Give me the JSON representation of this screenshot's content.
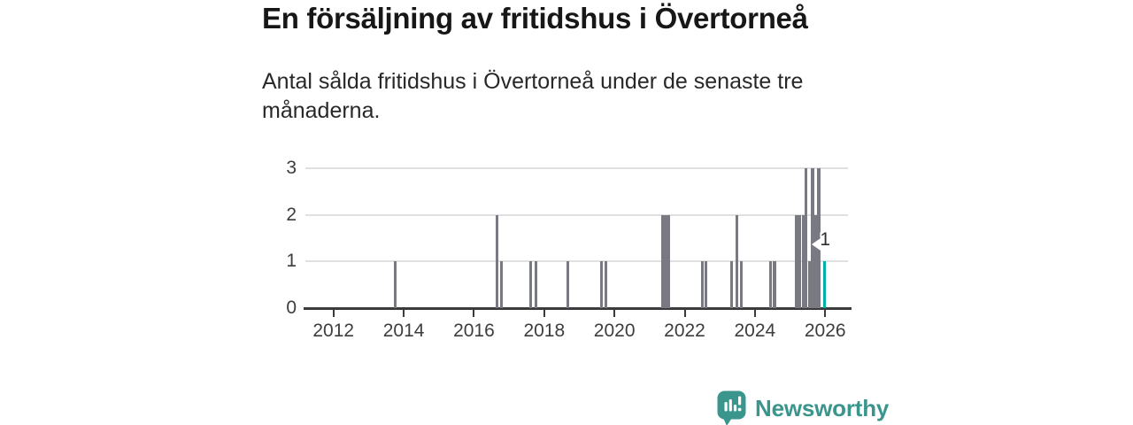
{
  "chart_data": {
    "type": "bar",
    "title": "En försäljning av fritidshus i Övertorneå",
    "subtitle": "Antal sålda fritidshus i Övertorneå under de senaste tre månaderna.",
    "xlabel": "",
    "ylabel": "",
    "xlim": [
      2011.2,
      2026.65
    ],
    "ylim": [
      0,
      3
    ],
    "yticks": [
      0,
      1,
      2,
      3
    ],
    "xticks": [
      2012,
      2014,
      2016,
      2018,
      2020,
      2022,
      2024,
      2026
    ],
    "grid": true,
    "legend": false,
    "highlight_label": "1",
    "colors": {
      "bar": "#797982",
      "highlight": "#00b0a5",
      "grid": "#e0e0e0",
      "axis": "#3b3b3b",
      "tick_label": "#3d3d3d"
    },
    "points": [
      {
        "x": 2013.76,
        "y": 1
      },
      {
        "x": 2016.66,
        "y": 2
      },
      {
        "x": 2016.78,
        "y": 1
      },
      {
        "x": 2017.62,
        "y": 1
      },
      {
        "x": 2017.77,
        "y": 1
      },
      {
        "x": 2018.67,
        "y": 1
      },
      {
        "x": 2019.63,
        "y": 1
      },
      {
        "x": 2019.76,
        "y": 1
      },
      {
        "x": 2021.38,
        "y": 2
      },
      {
        "x": 2021.47,
        "y": 2
      },
      {
        "x": 2021.55,
        "y": 2
      },
      {
        "x": 2022.51,
        "y": 1
      },
      {
        "x": 2022.6,
        "y": 1
      },
      {
        "x": 2023.34,
        "y": 1
      },
      {
        "x": 2023.48,
        "y": 2
      },
      {
        "x": 2023.61,
        "y": 1
      },
      {
        "x": 2024.44,
        "y": 1
      },
      {
        "x": 2024.56,
        "y": 1
      },
      {
        "x": 2025.19,
        "y": 2
      },
      {
        "x": 2025.28,
        "y": 2
      },
      {
        "x": 2025.37,
        "y": 2
      },
      {
        "x": 2025.46,
        "y": 3
      },
      {
        "x": 2025.55,
        "y": 1
      },
      {
        "x": 2025.64,
        "y": 3
      },
      {
        "x": 2025.73,
        "y": 2
      },
      {
        "x": 2025.82,
        "y": 3
      },
      {
        "x": 2025.98,
        "y": 1,
        "highlight": true,
        "label": "1"
      }
    ]
  },
  "branding": {
    "name": "Newsworthy",
    "color": "#3a968c",
    "icon": "newsworthy-bar-chart-bubble-icon"
  }
}
